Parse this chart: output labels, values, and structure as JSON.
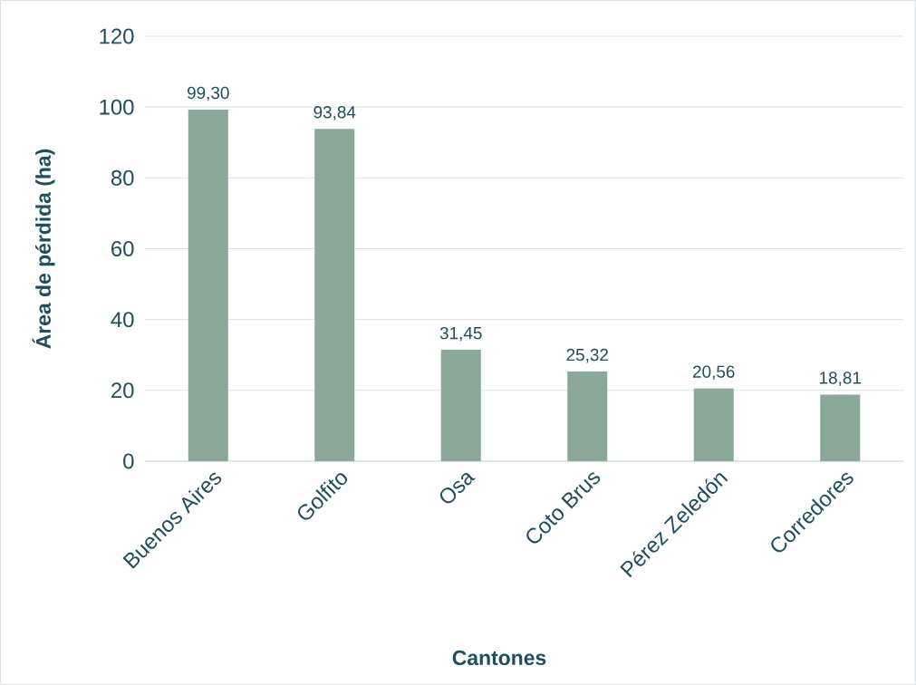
{
  "chart_data": {
    "type": "bar",
    "xlabel": "Cantones",
    "ylabel": "Área de pérdida (ha)",
    "categories": [
      "Buenos Aires",
      "Golfito",
      "Osa",
      "Coto Brus",
      "Pérez Zeledón",
      "Corredores"
    ],
    "values": [
      99.3,
      93.84,
      31.45,
      25.32,
      20.56,
      18.81
    ],
    "value_labels": [
      "99,30",
      "93,84",
      "31,45",
      "25,32",
      "20,56",
      "18,81"
    ],
    "color": "#8aa898",
    "ylim": [
      0,
      120
    ],
    "yticks": [
      0,
      20,
      40,
      60,
      80,
      100,
      120
    ],
    "grid": "y"
  }
}
